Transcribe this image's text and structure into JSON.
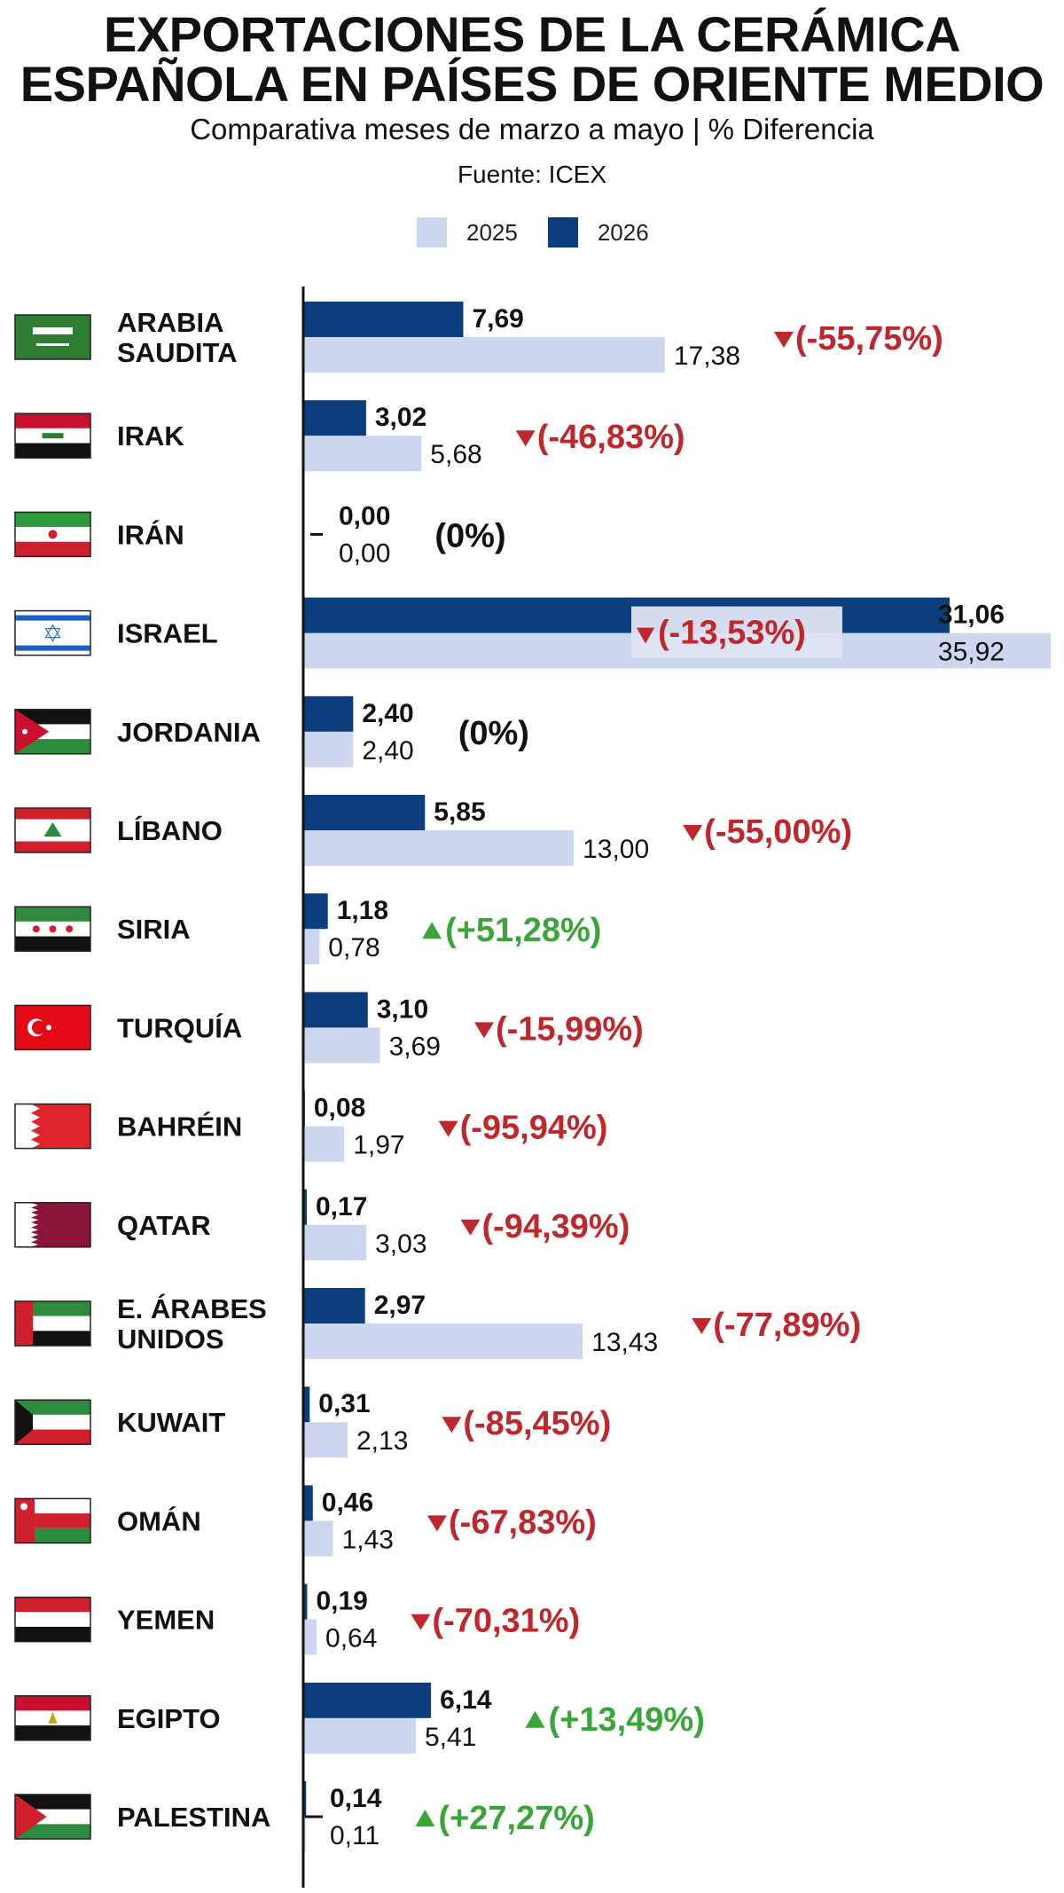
{
  "title_line1": "EXPORTACIONES DE LA CERÁMICA",
  "title_line2": "ESPAÑOLA EN PAÍSES DE ORIENTE MEDIO",
  "subtitle": "Comparativa meses de marzo a mayo | % Diferencia",
  "source": "Fuente: ICEX",
  "colors": {
    "y2026": "#0c3d7c",
    "y2025": "#ccd6ee",
    "down": "#c0272d",
    "up": "#3aa63a",
    "neutral": "#111111"
  },
  "legend": [
    {
      "label": "2025",
      "color": "#ccd6ee"
    },
    {
      "label": "2026",
      "color": "#0c3d7c"
    }
  ],
  "chart_data": {
    "type": "bar",
    "orientation": "horizontal",
    "title": "EXPORTACIONES DE LA CERÁMICA ESPAÑOLA EN PAÍSES DE ORIENTE MEDIO",
    "subtitle": "Comparativa meses de marzo a mayo | % Diferencia",
    "xlim": [
      0,
      35.92
    ],
    "categories": [
      "ARABIA SAUDITA",
      "IRAK",
      "IRÁN",
      "ISRAEL",
      "JORDANIA",
      "LÍBANO",
      "SIRIA",
      "TURQUÍA",
      "BAHRÉIN",
      "QATAR",
      "E. ÁRABES UNIDOS",
      "KUWAIT",
      "OMÁN",
      "YEMEN",
      "EGIPTO",
      "PALESTINA"
    ],
    "category_lines": [
      [
        "ARABIA",
        "SAUDITA"
      ],
      [
        "IRAK"
      ],
      [
        "IRÁN"
      ],
      [
        "ISRAEL"
      ],
      [
        "JORDANIA"
      ],
      [
        "LÍBANO"
      ],
      [
        "SIRIA"
      ],
      [
        "TURQUÍA"
      ],
      [
        "BAHRÉIN"
      ],
      [
        "QATAR"
      ],
      [
        "E. ÁRABES",
        "UNIDOS"
      ],
      [
        "KUWAIT"
      ],
      [
        "OMÁN"
      ],
      [
        "YEMEN"
      ],
      [
        "EGIPTO"
      ],
      [
        "PALESTINA"
      ]
    ],
    "flags": [
      "saudi-arabia-flag",
      "iraq-flag",
      "iran-flag",
      "israel-flag",
      "jordan-flag",
      "lebanon-flag",
      "syria-flag",
      "turkey-flag",
      "bahrain-flag",
      "qatar-flag",
      "uae-flag",
      "kuwait-flag",
      "oman-flag",
      "yemen-flag",
      "egypt-flag",
      "palestine-flag"
    ],
    "series": [
      {
        "name": "2026",
        "values": [
          7.69,
          3.02,
          0.0,
          31.06,
          2.4,
          5.85,
          1.18,
          3.1,
          0.08,
          0.17,
          2.97,
          0.31,
          0.46,
          0.19,
          6.14,
          0.14
        ],
        "labels": [
          "7,69",
          "3,02",
          "0,00",
          "31,06",
          "2,40",
          "5,85",
          "1,18",
          "3,10",
          "0,08",
          "0,17",
          "2,97",
          "0,31",
          "0,46",
          "0,19",
          "6,14",
          "0,14"
        ]
      },
      {
        "name": "2025",
        "values": [
          17.38,
          5.68,
          0.0,
          35.92,
          2.4,
          13.0,
          0.78,
          3.69,
          1.97,
          3.03,
          13.43,
          2.13,
          1.43,
          0.64,
          5.41,
          0.11
        ],
        "labels": [
          "17,38",
          "5,68",
          "0,00",
          "35,92",
          "2,40",
          "13,00",
          "0,78",
          "3,69",
          "1,97",
          "3,03",
          "13,43",
          "2,13",
          "1,43",
          "0,64",
          "5,41",
          "0,11"
        ]
      }
    ],
    "changes": [
      {
        "text": "(-55,75%)",
        "dir": "down"
      },
      {
        "text": "(-46,83%)",
        "dir": "down"
      },
      {
        "text": "(0%)",
        "dir": "none"
      },
      {
        "text": "(-13,53%)",
        "dir": "down"
      },
      {
        "text": "(0%)",
        "dir": "none"
      },
      {
        "text": "(-55,00%)",
        "dir": "down"
      },
      {
        "text": "(+51,28%)",
        "dir": "up"
      },
      {
        "text": "(-15,99%)",
        "dir": "down"
      },
      {
        "text": "(-95,94%)",
        "dir": "down"
      },
      {
        "text": "(-94,39%)",
        "dir": "down"
      },
      {
        "text": "(-77,89%)",
        "dir": "down"
      },
      {
        "text": "(-85,45%)",
        "dir": "down"
      },
      {
        "text": "(-67,83%)",
        "dir": "down"
      },
      {
        "text": "(-70,31%)",
        "dir": "down"
      },
      {
        "text": "(+13,49%)",
        "dir": "up"
      },
      {
        "text": "(+27,27%)",
        "dir": "up"
      }
    ],
    "grid": false,
    "legend_position": "top-center"
  }
}
